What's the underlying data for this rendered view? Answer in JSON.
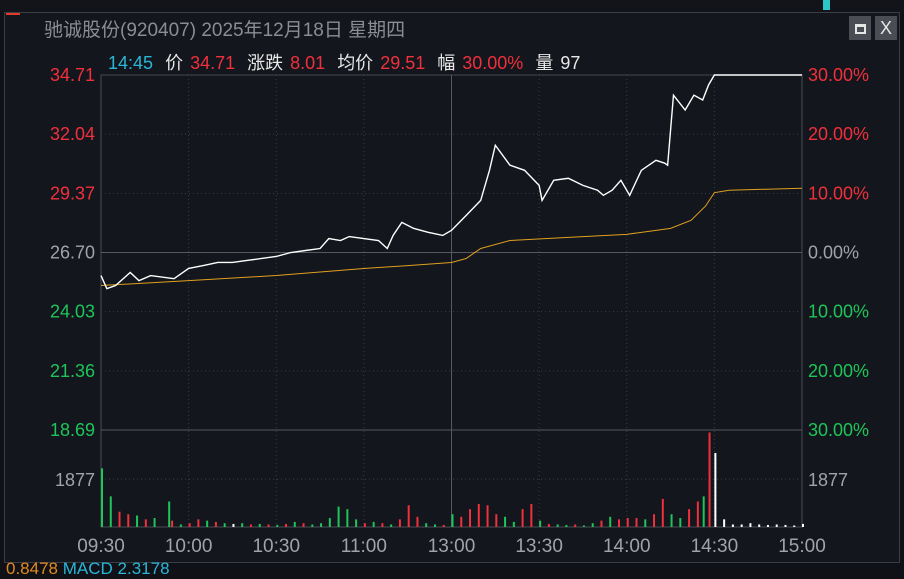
{
  "window": {
    "title": "驰诚股份(920407) 2025年12月18日 星期四",
    "maximize_icon": "maximize-icon",
    "close_label": "X"
  },
  "info_bar": {
    "time": "14:45",
    "price_label": "价",
    "price": "34.71",
    "change_label": "涨跌",
    "change": "8.01",
    "avg_label": "均价",
    "avg": "29.51",
    "pct_label": "幅",
    "pct": "30.00%",
    "vol_label": "量",
    "vol": "97"
  },
  "bottom_indicator": {
    "value1": "0.8478",
    "label": "MACD",
    "value2": "2.3178"
  },
  "colors": {
    "up": "#f0303c",
    "down": "#1ec55a",
    "price_line": "#ffffff",
    "avg_line": "#e0a020",
    "time": "#2ab6d8"
  },
  "chart_data": {
    "type": "line",
    "prev_close": 26.7,
    "ylim": [
      18.69,
      34.71
    ],
    "left_ticks": [
      "34.71",
      "32.04",
      "29.37",
      "26.70",
      "24.03",
      "21.36",
      "18.69"
    ],
    "right_ticks": [
      "30.00%",
      "20.00%",
      "10.00%",
      "0.00%",
      "10.00%",
      "20.00%",
      "30.00%"
    ],
    "x_ticks": [
      "09:30",
      "10:00",
      "10:30",
      "11:00",
      "13:00",
      "13:30",
      "14:00",
      "14:30",
      "15:00"
    ],
    "volume_tick": "1877",
    "volume_max": 3800,
    "price_series": [
      [
        0,
        25.66
      ],
      [
        2,
        25.07
      ],
      [
        5,
        25.21
      ],
      [
        10,
        25.8
      ],
      [
        13,
        25.43
      ],
      [
        17,
        25.66
      ],
      [
        25,
        25.52
      ],
      [
        30,
        25.98
      ],
      [
        35,
        26.11
      ],
      [
        40,
        26.25
      ],
      [
        45,
        26.25
      ],
      [
        50,
        26.34
      ],
      [
        55,
        26.43
      ],
      [
        60,
        26.52
      ],
      [
        65,
        26.7
      ],
      [
        70,
        26.79
      ],
      [
        75,
        26.88
      ],
      [
        78,
        27.33
      ],
      [
        82,
        27.24
      ],
      [
        85,
        27.42
      ],
      [
        90,
        27.33
      ],
      [
        95,
        27.24
      ],
      [
        98,
        26.88
      ],
      [
        100,
        27.47
      ],
      [
        103,
        28.06
      ],
      [
        107,
        27.79
      ],
      [
        112,
        27.61
      ],
      [
        117,
        27.47
      ],
      [
        120,
        27.7
      ],
      [
        125,
        28.37
      ],
      [
        130,
        29.05
      ],
      [
        133,
        30.41
      ],
      [
        135,
        31.54
      ],
      [
        140,
        30.64
      ],
      [
        145,
        30.41
      ],
      [
        150,
        29.73
      ],
      [
        151,
        29.05
      ],
      [
        155,
        29.96
      ],
      [
        160,
        30.05
      ],
      [
        165,
        29.73
      ],
      [
        170,
        29.51
      ],
      [
        172,
        29.28
      ],
      [
        175,
        29.51
      ],
      [
        178,
        29.96
      ],
      [
        181,
        29.28
      ],
      [
        185,
        30.41
      ],
      [
        190,
        30.86
      ],
      [
        193,
        30.73
      ],
      [
        194,
        30.64
      ],
      [
        196,
        33.8
      ],
      [
        200,
        33.13
      ],
      [
        203,
        33.8
      ],
      [
        206,
        33.58
      ],
      [
        208,
        34.26
      ],
      [
        210,
        34.71
      ],
      [
        240,
        34.71
      ]
    ],
    "avg_series": [
      [
        0,
        25.21
      ],
      [
        30,
        25.43
      ],
      [
        60,
        25.66
      ],
      [
        90,
        25.98
      ],
      [
        105,
        26.11
      ],
      [
        120,
        26.25
      ],
      [
        125,
        26.43
      ],
      [
        130,
        26.88
      ],
      [
        140,
        27.24
      ],
      [
        160,
        27.38
      ],
      [
        180,
        27.52
      ],
      [
        195,
        27.79
      ],
      [
        202,
        28.15
      ],
      [
        207,
        28.8
      ],
      [
        210,
        29.4
      ],
      [
        215,
        29.51
      ],
      [
        240,
        29.6
      ]
    ],
    "volume_series": [
      [
        0,
        2300,
        "g"
      ],
      [
        3,
        1200,
        "g"
      ],
      [
        6,
        600,
        "r"
      ],
      [
        9,
        500,
        "r"
      ],
      [
        12,
        450,
        "g"
      ],
      [
        15,
        300,
        "r"
      ],
      [
        18,
        350,
        "g"
      ],
      [
        23,
        1000,
        "g"
      ],
      [
        24,
        250,
        "r"
      ],
      [
        27,
        100,
        "g"
      ],
      [
        30,
        150,
        "r"
      ],
      [
        33,
        300,
        "r"
      ],
      [
        36,
        250,
        "g"
      ],
      [
        39,
        200,
        "r"
      ],
      [
        42,
        150,
        "g"
      ],
      [
        45,
        120,
        "w"
      ],
      [
        48,
        150,
        "g"
      ],
      [
        51,
        100,
        "r"
      ],
      [
        54,
        120,
        "g"
      ],
      [
        57,
        100,
        "r"
      ],
      [
        60,
        80,
        "g"
      ],
      [
        63,
        120,
        "r"
      ],
      [
        66,
        200,
        "g"
      ],
      [
        69,
        150,
        "r"
      ],
      [
        72,
        100,
        "g"
      ],
      [
        75,
        150,
        "g"
      ],
      [
        78,
        350,
        "g"
      ],
      [
        81,
        800,
        "g"
      ],
      [
        84,
        700,
        "g"
      ],
      [
        87,
        300,
        "g"
      ],
      [
        90,
        150,
        "r"
      ],
      [
        93,
        200,
        "g"
      ],
      [
        96,
        150,
        "r"
      ],
      [
        99,
        100,
        "g"
      ],
      [
        102,
        300,
        "r"
      ],
      [
        105,
        850,
        "r"
      ],
      [
        108,
        400,
        "r"
      ],
      [
        111,
        150,
        "g"
      ],
      [
        114,
        100,
        "g"
      ],
      [
        117,
        80,
        "r"
      ],
      [
        120,
        500,
        "g"
      ],
      [
        123,
        400,
        "r"
      ],
      [
        126,
        700,
        "r"
      ],
      [
        129,
        900,
        "r"
      ],
      [
        132,
        850,
        "r"
      ],
      [
        135,
        500,
        "r"
      ],
      [
        138,
        400,
        "g"
      ],
      [
        141,
        200,
        "g"
      ],
      [
        144,
        700,
        "r"
      ],
      [
        147,
        900,
        "r"
      ],
      [
        150,
        250,
        "g"
      ],
      [
        153,
        120,
        "r"
      ],
      [
        156,
        100,
        "g"
      ],
      [
        159,
        80,
        "g"
      ],
      [
        162,
        100,
        "r"
      ],
      [
        165,
        60,
        "g"
      ],
      [
        168,
        150,
        "g"
      ],
      [
        171,
        250,
        "r"
      ],
      [
        174,
        400,
        "g"
      ],
      [
        177,
        300,
        "r"
      ],
      [
        180,
        350,
        "r"
      ],
      [
        183,
        350,
        "r"
      ],
      [
        186,
        300,
        "g"
      ],
      [
        189,
        500,
        "r"
      ],
      [
        192,
        1100,
        "r"
      ],
      [
        195,
        500,
        "g"
      ],
      [
        198,
        350,
        "g"
      ],
      [
        201,
        700,
        "r"
      ],
      [
        204,
        1000,
        "r"
      ],
      [
        206,
        1200,
        "g"
      ],
      [
        208,
        3700,
        "r"
      ],
      [
        210,
        2900,
        "w"
      ],
      [
        213,
        300,
        "w"
      ],
      [
        216,
        100,
        "w"
      ],
      [
        219,
        100,
        "w"
      ],
      [
        222,
        150,
        "w"
      ],
      [
        225,
        100,
        "w"
      ],
      [
        228,
        80,
        "w"
      ],
      [
        231,
        100,
        "w"
      ],
      [
        234,
        80,
        "w"
      ],
      [
        237,
        60,
        "w"
      ],
      [
        240,
        120,
        "w"
      ]
    ]
  }
}
